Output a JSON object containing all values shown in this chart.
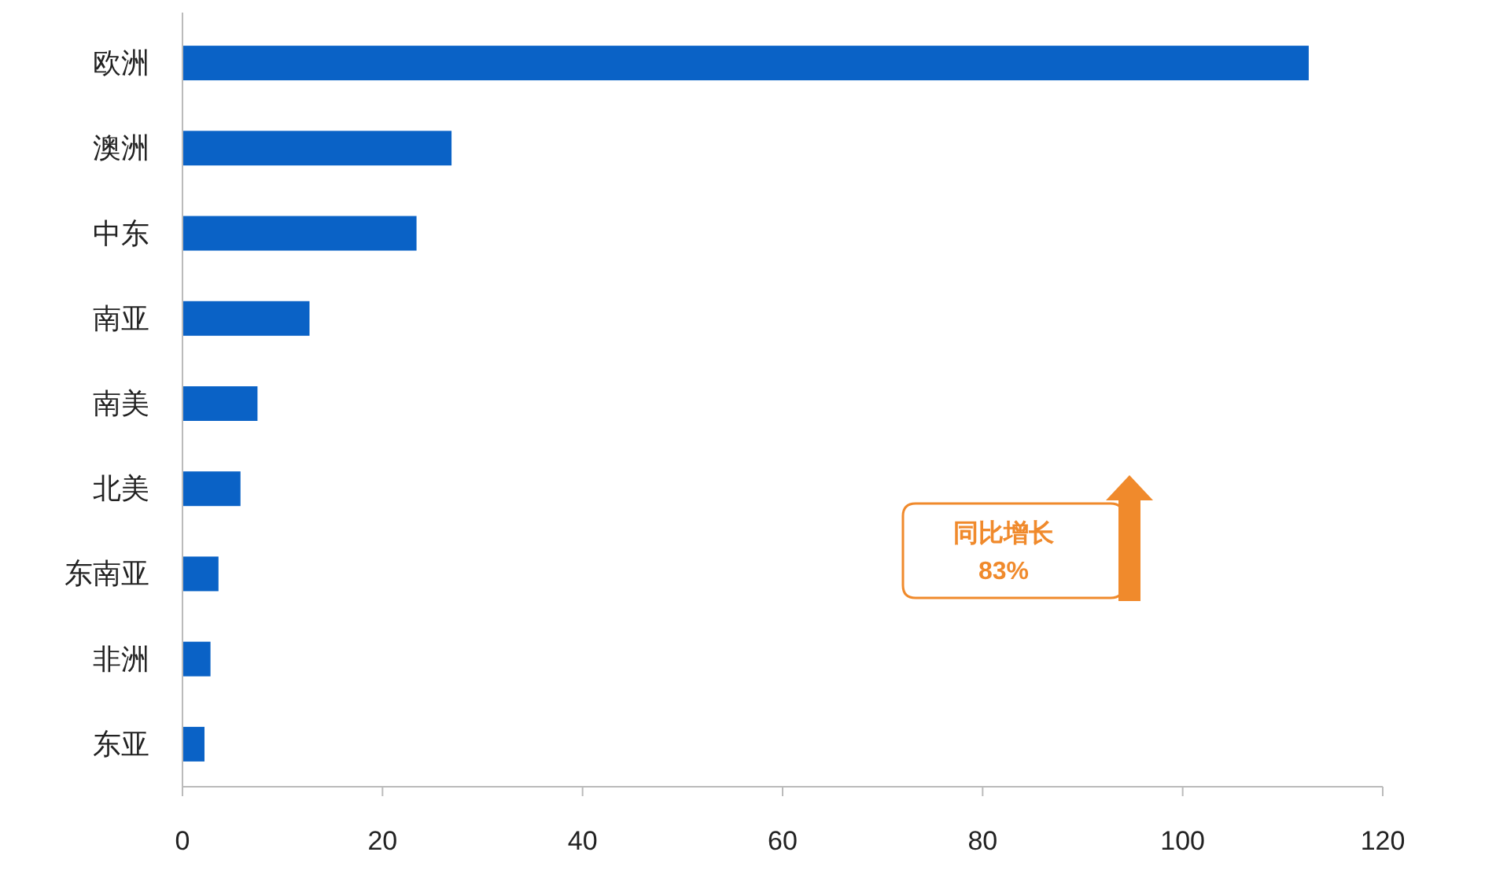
{
  "chart_data": {
    "type": "bar",
    "orientation": "horizontal",
    "categories": [
      "欧洲",
      "澳洲",
      "中东",
      "南亚",
      "南美",
      "北美",
      "东南亚",
      "非洲",
      "东亚"
    ],
    "values": [
      112.6,
      26.9,
      23.4,
      12.7,
      7.5,
      5.8,
      3.6,
      2.8,
      2.2
    ],
    "color": "#0a62c6",
    "xlim": [
      0,
      120
    ],
    "xticks": [
      0,
      20,
      40,
      60,
      80,
      100,
      120
    ],
    "annotations": [
      "同比增长\n83%"
    ]
  }
}
